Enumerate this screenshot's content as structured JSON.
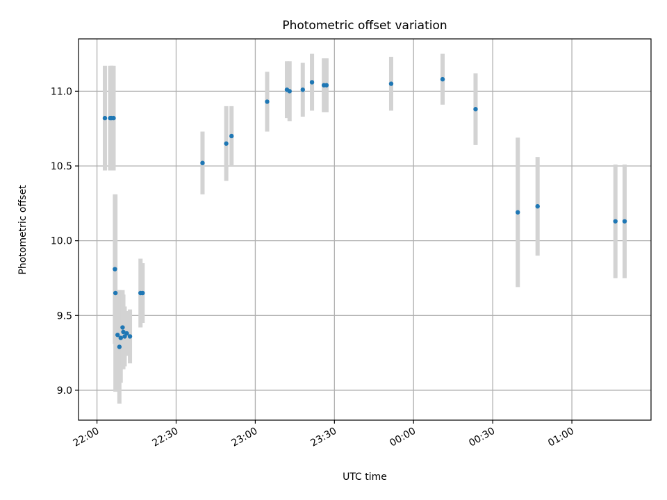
{
  "chart_data": {
    "type": "scatter",
    "title": "Photometric offset variation",
    "xlabel": "UTC time",
    "ylabel": "Photometric offset",
    "x_unit": "UTC time (hh:mm), values after midnight written as 24:xx/25:xx",
    "xlim": [
      "21:53",
      "25:30"
    ],
    "ylim": [
      8.8,
      11.35
    ],
    "grid": true,
    "x_tick_labels": [
      "22:00",
      "22:30",
      "23:00",
      "23:30",
      "00:00",
      "00:30",
      "01:00"
    ],
    "x_tick_values": [
      "22:00",
      "22:30",
      "23:00",
      "23:30",
      "24:00",
      "24:30",
      "25:00"
    ],
    "y_tick_labels": [
      "9.0",
      "9.5",
      "10.0",
      "10.5",
      "11.0"
    ],
    "y_tick_values": [
      9.0,
      9.5,
      10.0,
      10.5,
      11.0
    ],
    "colors": {
      "points": "#1f77b4",
      "error_bars": "#d3d3d3",
      "grid": "#b0b0b0"
    },
    "series": [
      {
        "points": [
          {
            "x": "22:03",
            "y": 10.82,
            "yerr": 0.35
          },
          {
            "x": "22:05",
            "y": 10.82,
            "yerr": 0.35
          },
          {
            "x": "22:05.5",
            "y": 10.82,
            "yerr": 0.35
          },
          {
            "x": "22:06.3",
            "y": 10.82,
            "yerr": 0.35
          },
          {
            "x": "22:06.8",
            "y": 9.81,
            "yerr": 0.5
          },
          {
            "x": "22:07",
            "y": 9.65,
            "yerr": 0.66
          },
          {
            "x": "22:07.8",
            "y": 9.37,
            "yerr": 0.3
          },
          {
            "x": "22:08.5",
            "y": 9.29,
            "yerr": 0.38
          },
          {
            "x": "22:09",
            "y": 9.35,
            "yerr": 0.3
          },
          {
            "x": "22:09.7",
            "y": 9.42,
            "yerr": 0.25
          },
          {
            "x": "22:10",
            "y": 9.39,
            "yerr": 0.25
          },
          {
            "x": "22:10.5",
            "y": 9.36,
            "yerr": 0.2
          },
          {
            "x": "22:11.3",
            "y": 9.38,
            "yerr": 0.15
          },
          {
            "x": "22:12.5",
            "y": 9.36,
            "yerr": 0.18
          },
          {
            "x": "22:16.5",
            "y": 9.65,
            "yerr": 0.23
          },
          {
            "x": "22:17.3",
            "y": 9.65,
            "yerr": 0.2
          },
          {
            "x": "22:40",
            "y": 10.52,
            "yerr": 0.21
          },
          {
            "x": "22:49",
            "y": 10.65,
            "yerr": 0.25
          },
          {
            "x": "22:51",
            "y": 10.7,
            "yerr": 0.2
          },
          {
            "x": "23:04.5",
            "y": 10.93,
            "yerr": 0.2
          },
          {
            "x": "23:12",
            "y": 11.01,
            "yerr": 0.19
          },
          {
            "x": "23:13",
            "y": 11.0,
            "yerr": 0.2
          },
          {
            "x": "23:18",
            "y": 11.01,
            "yerr": 0.18
          },
          {
            "x": "23:21.5",
            "y": 11.06,
            "yerr": 0.19
          },
          {
            "x": "23:26",
            "y": 11.04,
            "yerr": 0.18
          },
          {
            "x": "23:27",
            "y": 11.04,
            "yerr": 0.18
          },
          {
            "x": "23:51.5",
            "y": 11.05,
            "yerr": 0.18
          },
          {
            "x": "24:11",
            "y": 11.08,
            "yerr": 0.17
          },
          {
            "x": "24:23.5",
            "y": 10.88,
            "yerr": 0.24
          },
          {
            "x": "24:39.5",
            "y": 10.19,
            "yerr": 0.5
          },
          {
            "x": "24:47",
            "y": 10.23,
            "yerr": 0.33
          },
          {
            "x": "25:16.5",
            "y": 10.13,
            "yerr": 0.38
          },
          {
            "x": "25:20",
            "y": 10.13,
            "yerr": 0.38
          }
        ]
      }
    ]
  }
}
